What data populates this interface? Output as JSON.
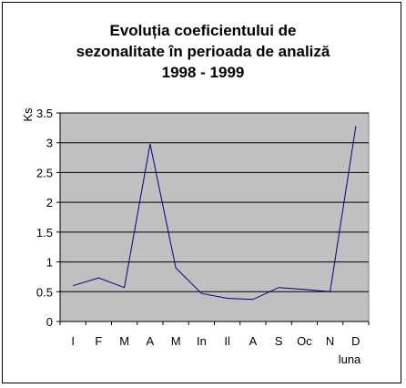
{
  "chart_data": {
    "type": "line",
    "title_lines": [
      "Evoluția coeficientului de",
      "sezonalitate în perioada de analiză",
      "1998 - 1999"
    ],
    "ylabel": "Ks",
    "xlabel": "luna",
    "categories": [
      "I",
      "F",
      "M",
      "A",
      "M",
      "In",
      "Il",
      "A",
      "S",
      "Oc",
      "N",
      "D"
    ],
    "y_ticks": [
      "0",
      "0.5",
      "1",
      "1.5",
      "2",
      "2.5",
      "3",
      "3.5"
    ],
    "ylim": [
      0,
      3.5
    ],
    "grid": true,
    "legend": "none",
    "series": [
      {
        "values": [
          0.6,
          0.73,
          0.57,
          2.98,
          0.9,
          0.47,
          0.39,
          0.37,
          0.57,
          0.54,
          0.5,
          3.28
        ]
      }
    ],
    "colors": {
      "plot_bg": "#c0c0c0",
      "line": "#00007f",
      "grid": "#000000"
    }
  }
}
